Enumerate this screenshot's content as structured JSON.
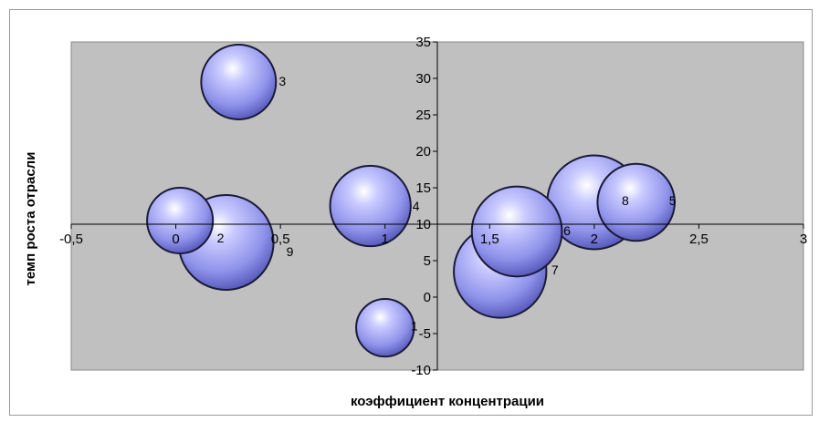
{
  "chart_data": {
    "type": "bubble",
    "title": "",
    "xlabel": "коэффициент концентрации",
    "ylabel": "темп роста отрасли",
    "xlim": [
      -0.5,
      3
    ],
    "ylim": [
      -10,
      35
    ],
    "x_ticks": [
      -0.5,
      0,
      0.5,
      1,
      1.5,
      2,
      2.5,
      3
    ],
    "x_tick_labels": [
      "-0,5",
      "0",
      "0,5",
      "1",
      "1,5",
      "2",
      "2,5",
      "3"
    ],
    "y_ticks": [
      -10,
      -5,
      0,
      5,
      10,
      15,
      20,
      25,
      30,
      35
    ],
    "y_tick_labels": [
      "-10",
      "-5",
      "0",
      "5",
      "10",
      "15",
      "20",
      "25",
      "30",
      "35"
    ],
    "x_axis_crosses_at_y": 10,
    "y_axis_crosses_at_x": 1.25,
    "grid": false,
    "legend": "none",
    "plot_background": "#c0c0c0",
    "bubble_color": "#9a9cf0",
    "points": [
      {
        "label": "3",
        "x": 0.3,
        "y": 29.5,
        "size": 0.62
      },
      {
        "label": "",
        "x": 0.02,
        "y": 10.5,
        "size": 0.48
      },
      {
        "label": "2",
        "x": 0.24,
        "y": 7.5,
        "size": 1.0
      },
      {
        "label": "9",
        "x": 0.24,
        "y": 7.5,
        "size": 0.0
      },
      {
        "label": "4",
        "x": 0.93,
        "y": 12.5,
        "size": 0.72
      },
      {
        "label": "1",
        "x": 1.0,
        "y": -4.2,
        "size": 0.37
      },
      {
        "label": "6",
        "x": 1.63,
        "y": 9.0,
        "size": 0.9
      },
      {
        "label": "7",
        "x": 1.55,
        "y": 3.5,
        "size": 0.95
      },
      {
        "label": "8",
        "x": 2.0,
        "y": 13.0,
        "size": 0.98
      },
      {
        "label": "5",
        "x": 2.2,
        "y": 13.0,
        "size": 0.66
      }
    ]
  }
}
